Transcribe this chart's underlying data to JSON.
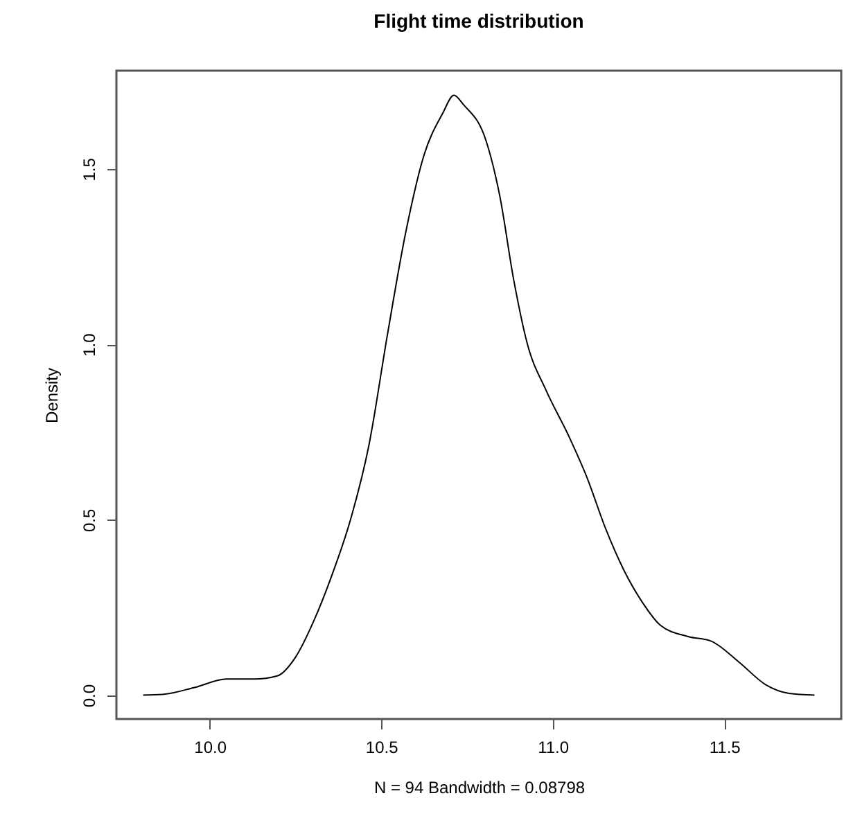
{
  "chart_data": {
    "type": "line",
    "title": "Flight time distribution",
    "xlabel": "N = 94   Bandwidth = 0.08798",
    "ylabel": "Density",
    "x": [
      9.806,
      9.862,
      9.956,
      10.049,
      10.13,
      10.197,
      10.25,
      10.304,
      10.357,
      10.411,
      10.464,
      10.518,
      10.571,
      10.625,
      10.679,
      10.712,
      10.739,
      10.806,
      10.846,
      10.886,
      10.926,
      10.98,
      11.047,
      11.1,
      11.154,
      11.207,
      11.261,
      11.314,
      11.395,
      11.462,
      11.542,
      11.622,
      11.689,
      11.763
    ],
    "series": [
      {
        "color": "#000000",
        "values": [
          0.0,
          0.002,
          0.022,
          0.046,
          0.046,
          0.055,
          0.108,
          0.213,
          0.344,
          0.502,
          0.712,
          1.027,
          1.317,
          1.54,
          1.658,
          1.71,
          1.684,
          1.579,
          1.421,
          1.185,
          1.001,
          0.87,
          0.738,
          0.62,
          0.475,
          0.357,
          0.265,
          0.199,
          0.167,
          0.154,
          0.095,
          0.029,
          0.005,
          0.0
        ]
      }
    ],
    "xlim": [
      9.728,
      11.841
    ],
    "ylim": [
      -0.068,
      1.78
    ],
    "xticks": [
      {
        "value": 10,
        "label": "10.0"
      },
      10.5,
      {
        "value": 11,
        "label": "11.0"
      },
      11.5
    ],
    "yticks": [
      {
        "value": 0,
        "label": "0.0"
      },
      0.5,
      {
        "value": 1,
        "label": "1.0"
      },
      1.5
    ],
    "grid": false,
    "line_style": "solid"
  }
}
